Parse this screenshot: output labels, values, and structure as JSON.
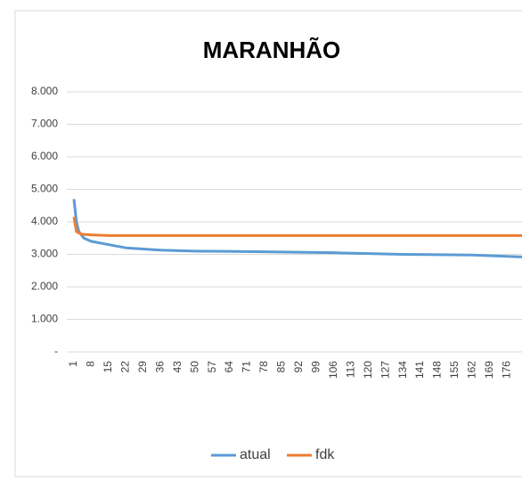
{
  "chart_data": {
    "type": "line",
    "title": "MARANHÃO",
    "xlim": [
      1,
      182
    ],
    "xticks": [
      1,
      8,
      15,
      22,
      29,
      36,
      43,
      50,
      57,
      64,
      71,
      78,
      85,
      92,
      99,
      106,
      113,
      120,
      127,
      134,
      141,
      148,
      155,
      162,
      169,
      176
    ],
    "ylim": [
      0,
      8000
    ],
    "yticks": [
      {
        "value": 0,
        "label": "-"
      },
      {
        "value": 1000,
        "label": "1.000"
      },
      {
        "value": 2000,
        "label": "2.000"
      },
      {
        "value": 3000,
        "label": "3.000"
      },
      {
        "value": 4000,
        "label": "4.000"
      },
      {
        "value": 5000,
        "label": "5.000"
      },
      {
        "value": 6000,
        "label": "6.000"
      },
      {
        "value": 7000,
        "label": "7.000"
      },
      {
        "value": 8000,
        "label": "8.000"
      }
    ],
    "grid": true,
    "legend": "bottom",
    "series": [
      {
        "name": "atual",
        "color": "#5b9bd5",
        "x": [
          1,
          2,
          3,
          5,
          8,
          15,
          22,
          36,
          50,
          78,
          106,
          134,
          162,
          169,
          182
        ],
        "values": [
          4700,
          4000,
          3700,
          3500,
          3400,
          3300,
          3200,
          3130,
          3100,
          3080,
          3050,
          3000,
          2980,
          2960,
          2920
        ]
      },
      {
        "name": "fdk",
        "color": "#ed7d31",
        "x": [
          1,
          2,
          4,
          8,
          15,
          182
        ],
        "values": [
          4150,
          3700,
          3620,
          3600,
          3580,
          3580
        ]
      }
    ]
  }
}
